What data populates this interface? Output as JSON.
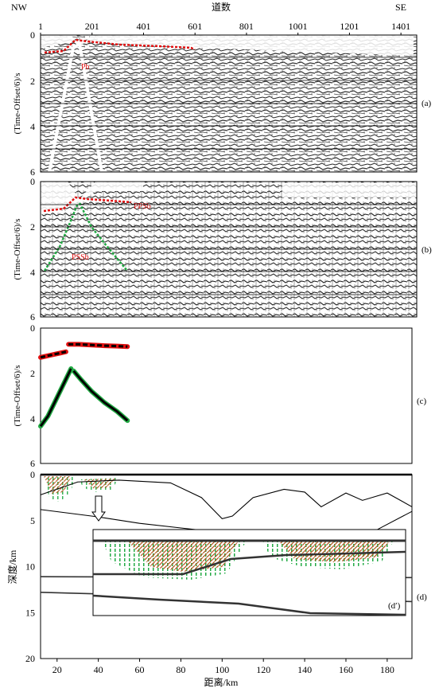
{
  "header": {
    "left": "NW",
    "center": "道数",
    "right": "SE",
    "trace_ticks": [
      "1",
      "201",
      "401",
      "601",
      "801",
      "1001",
      "1201",
      "1401"
    ]
  },
  "panels": {
    "a": {
      "tag": "(a)",
      "ylabel": "(Time-Offset/6)/s",
      "yticks": [
        "0",
        "2",
        "4",
        "6"
      ],
      "pick_label": "Pb"
    },
    "b": {
      "tag": "(b)",
      "ylabel": "(Time-Offset/6)/s",
      "yticks": [
        "0",
        "2",
        "4",
        "6"
      ],
      "pick_labels": [
        "PPSb",
        "PSSb"
      ]
    },
    "c": {
      "tag": "(c)",
      "ylabel": "(Time-Offset/6)/s",
      "yticks": [
        "0",
        "2",
        "4",
        "6"
      ]
    },
    "d": {
      "tag": "(d)",
      "ylabel": "深度/km",
      "yticks": [
        "0",
        "5",
        "10",
        "15",
        "20"
      ],
      "xticks": [
        "20",
        "40",
        "60",
        "80",
        "100",
        "120",
        "140",
        "160",
        "180"
      ],
      "xlabel": "距离/km",
      "inset_tag": "(d′)"
    }
  },
  "colors": {
    "pick_red": "#e01010",
    "model_green": "#22aa44",
    "ray_brown": "#b0561e",
    "line_black": "#000000"
  },
  "chart_data": [
    {
      "type": "line",
      "panel": "c",
      "series": [
        {
          "values_x_trace": [
            1,
            20,
            40,
            60,
            80,
            100
          ],
          "values_y": [
            1.3,
            1.25,
            1.2,
            1.15,
            1.1,
            1.05
          ]
        },
        {
          "values_x_trace": [
            110,
            150,
            200,
            250,
            300,
            340
          ],
          "values_y": [
            0.72,
            0.72,
            0.75,
            0.78,
            0.8,
            0.82
          ]
        },
        {
          "values_x_trace": [
            1,
            30,
            60,
            90,
            120
          ],
          "values_y": [
            4.35,
            3.9,
            3.2,
            2.5,
            1.8
          ]
        },
        {
          "values_x_trace": [
            130,
            160,
            200,
            250,
            300,
            340
          ],
          "values_y": [
            1.9,
            2.3,
            2.8,
            3.3,
            3.7,
            4.1
          ]
        }
      ]
    },
    {
      "type": "line",
      "panel": "d",
      "xlim": [
        12,
        192
      ],
      "ylim": [
        0,
        20
      ],
      "series": [
        {
          "x": [
            12,
            192
          ],
          "y": [
            0,
            0
          ]
        },
        {
          "x": [
            12,
            30,
            50,
            75,
            90,
            100,
            105,
            115,
            130,
            140,
            148,
            160,
            168,
            180,
            192
          ],
          "y": [
            2.2,
            0.8,
            0.6,
            0.9,
            2.5,
            4.8,
            4.5,
            2.5,
            1.6,
            1.9,
            3.5,
            2.0,
            2.8,
            2.0,
            3.5
          ]
        },
        {
          "x": [
            12,
            40,
            60,
            80,
            100,
            120,
            140,
            160,
            175,
            192
          ],
          "y": [
            3.8,
            4.6,
            5.3,
            5.8,
            6.3,
            7.2,
            7.4,
            7.1,
            6.0,
            4.0
          ]
        },
        {
          "x": [
            12,
            192
          ],
          "y": [
            11.1,
            11.2
          ]
        },
        {
          "x": [
            12,
            60,
            100,
            140,
            192
          ],
          "y": [
            12.8,
            13.1,
            13.4,
            13.6,
            13.8
          ]
        }
      ]
    }
  ]
}
